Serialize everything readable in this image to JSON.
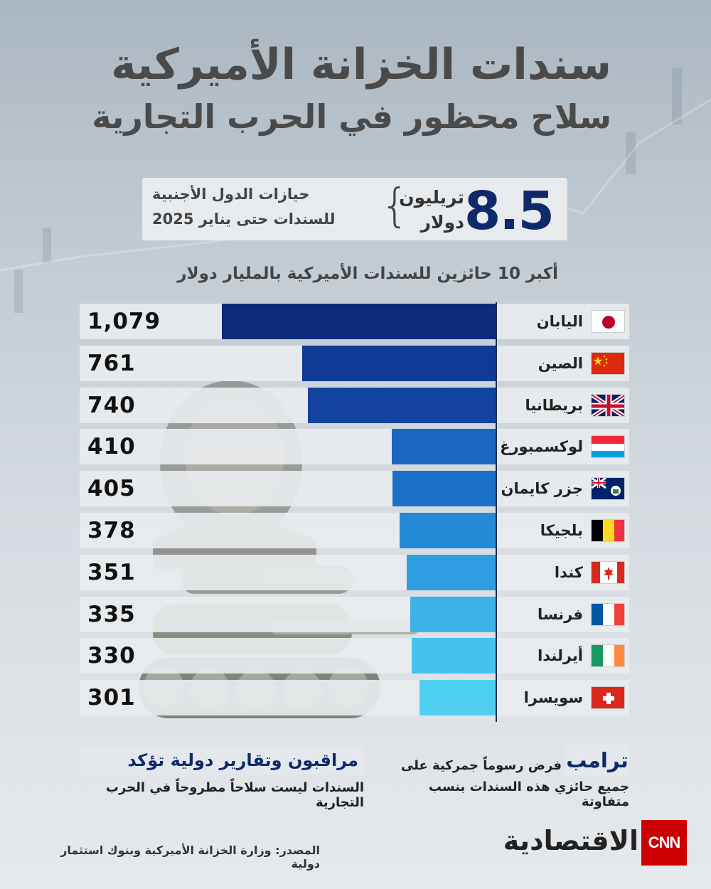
{
  "header": {
    "title": "سندات الخزانة الأميركية",
    "subtitle": "سلاح محظور في الحرب التجارية"
  },
  "stat": {
    "number": "8.5",
    "unit_line1": "تريليون",
    "unit_line2": "دولار",
    "desc_line1": "حيازات الدول الأجنبية",
    "desc_line2": "للسندات حتى يناير 2025"
  },
  "chart_data": {
    "type": "bar",
    "title": "أكبر 10 حائزين للسندات الأميركية بالمليار دولار",
    "categories": [
      "اليابان",
      "الصين",
      "بريطانيا",
      "لوكسمبورغ",
      "جزر كايمان",
      "بلجيكا",
      "كندا",
      "فرنسا",
      "أيرلندا",
      "سويسرا"
    ],
    "values": [
      1079,
      761,
      740,
      410,
      405,
      378,
      351,
      335,
      330,
      301
    ],
    "value_labels": [
      "1,079",
      "761",
      "740",
      "410",
      "405",
      "378",
      "351",
      "335",
      "330",
      "301"
    ],
    "flags": [
      "japan-flag",
      "china-flag",
      "uk-flag",
      "luxembourg-flag",
      "cayman-flag",
      "belgium-flag",
      "canada-flag",
      "france-flag",
      "ireland-flag",
      "switzerland-flag"
    ],
    "colors": [
      "#0d2a7a",
      "#103a93",
      "#12449f",
      "#1a66c2",
      "#1d70c8",
      "#2489d6",
      "#2e9ee0",
      "#3bb2e8",
      "#45c2ee",
      "#4fd0f2"
    ],
    "xlim": [
      0,
      1100
    ],
    "orientation": "horizontal",
    "grid": false
  },
  "notes": {
    "right_title": "ترامب",
    "right_line1": "فرض رسوماً جمركية على",
    "right_line2": "جميع حائزي هذه السندات بنسب متفاوتة",
    "left_title": "مراقبون وتقارير دولية تؤكد",
    "left_line2": "السندات ليست سلاحاً مطروحاً في الحرب التجارية"
  },
  "footer": {
    "source": "المصدر: وزارة الخزانة الأميركية وبنوك استثمار دولية",
    "brand": "الاقتصادية",
    "logo": "CNN"
  }
}
